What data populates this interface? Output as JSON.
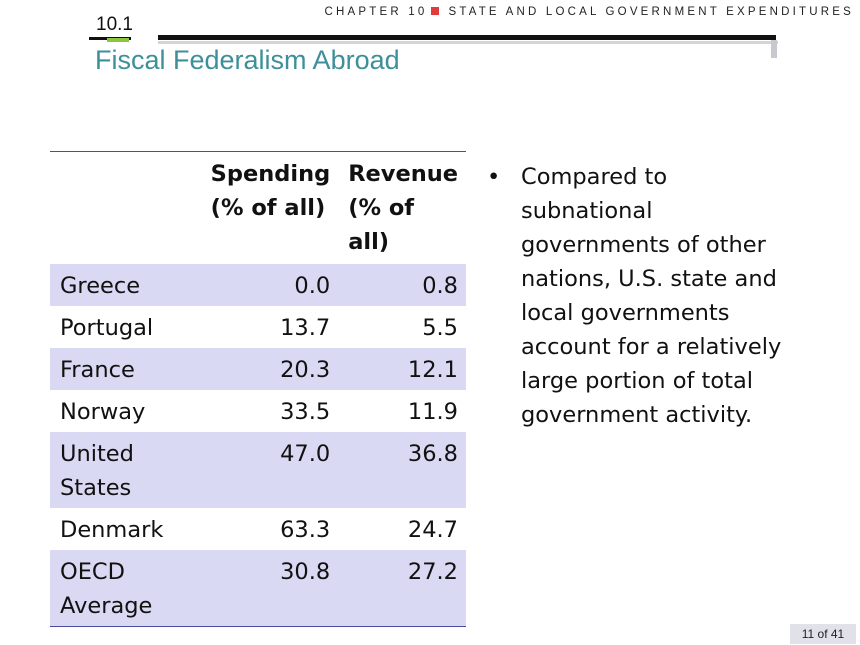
{
  "header": {
    "chapter": "CHAPTER 10",
    "chapter_title": "STATE AND LOCAL GOVERNMENT EXPENDITURES",
    "section_number": "10.1",
    "title": "Fiscal Federalism Abroad"
  },
  "table": {
    "columns": [
      "",
      "Spending (% of all)",
      "Revenue (% of all)"
    ],
    "rows": [
      {
        "country": "Greece",
        "spending": "0.0",
        "revenue": "0.8"
      },
      {
        "country": "Portugal",
        "spending": "13.7",
        "revenue": "5.5"
      },
      {
        "country": "France",
        "spending": "20.3",
        "revenue": "12.1"
      },
      {
        "country": "Norway",
        "spending": "33.5",
        "revenue": "11.9"
      },
      {
        "country": "United States",
        "spending": "47.0",
        "revenue": "36.8"
      },
      {
        "country": "Denmark",
        "spending": "63.3",
        "revenue": "24.7"
      },
      {
        "country": "OECD Average",
        "spending": "30.8",
        "revenue": "27.2"
      }
    ]
  },
  "bullets": [
    {
      "symbol": "•",
      "text": "Compared to subnational governments of other nations, U.S. state and local governments account for a relatively large portion of total government activity."
    }
  ],
  "footer": {
    "page": "11 of 41"
  },
  "colors": {
    "accent_red": "#e23b3b",
    "accent_green": "#8cc63f",
    "title_teal": "#3d8f99",
    "row_shade": "#d9d9f3",
    "table_rule": "#4b4ba0"
  }
}
